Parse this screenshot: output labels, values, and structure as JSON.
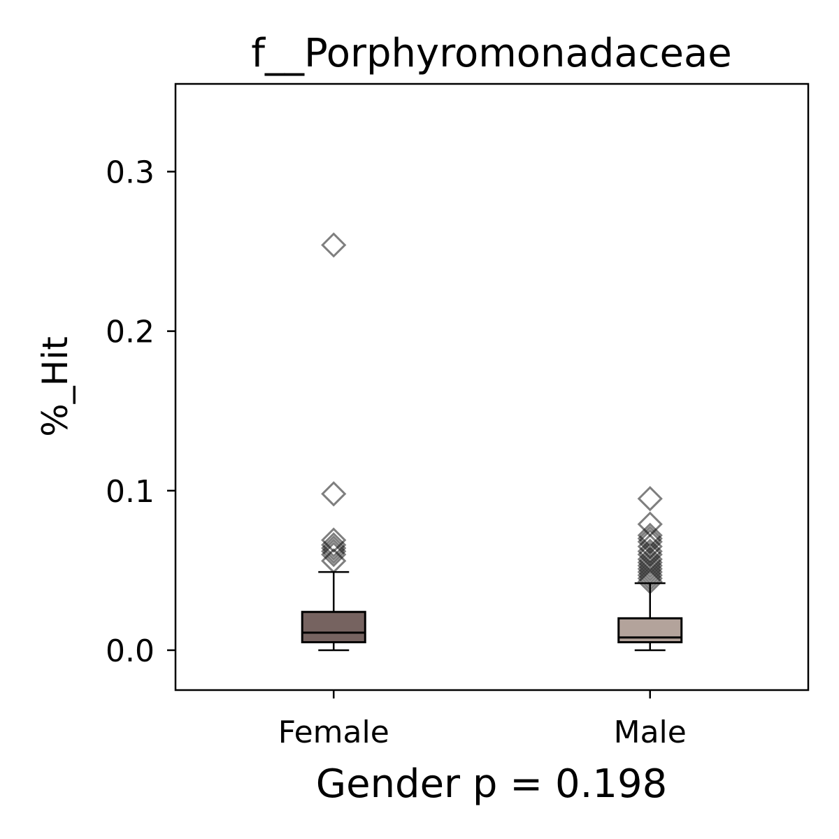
{
  "chart_data": {
    "type": "box",
    "title": "f__Porphyromonadaceae",
    "xlabel": "Gender p = 0.198",
    "ylabel": "%_Hit",
    "ylim": [
      -0.025,
      0.355
    ],
    "yticks": [
      0.0,
      0.1,
      0.2,
      0.3
    ],
    "ytick_labels": [
      "0.0",
      "0.1",
      "0.2",
      "0.3"
    ],
    "categories": [
      "Female",
      "Male"
    ],
    "grid": false,
    "boxes": [
      {
        "category": "Female",
        "color": "#766360",
        "whisker_low": 0.0,
        "q1": 0.005,
        "median": 0.011,
        "q3": 0.024,
        "whisker_high": 0.049,
        "outliers": [
          0.056,
          0.06,
          0.062,
          0.064,
          0.066,
          0.069,
          0.098,
          0.254
        ]
      },
      {
        "category": "Male",
        "color": "#b3a39b",
        "whisker_low": 0.0,
        "q1": 0.005,
        "median": 0.008,
        "q3": 0.02,
        "whisker_high": 0.042,
        "outliers": [
          0.043,
          0.045,
          0.047,
          0.049,
          0.051,
          0.053,
          0.055,
          0.057,
          0.06,
          0.062,
          0.065,
          0.068,
          0.07,
          0.072,
          0.079,
          0.095
        ]
      }
    ]
  }
}
